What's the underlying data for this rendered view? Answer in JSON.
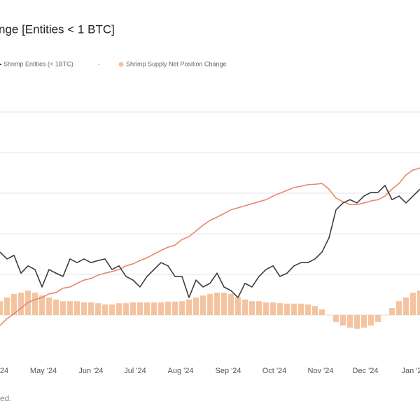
{
  "chart_data": {
    "type": "combo",
    "title": "nge [Entities < 1 BTC]",
    "legend_separator": "-",
    "footer": "ed.",
    "xlim": [
      0,
      60
    ],
    "xticks": [
      {
        "value": 0.5,
        "label": "'24"
      },
      {
        "value": 6.2,
        "label": "May '24"
      },
      {
        "value": 13,
        "label": "Jun '24"
      },
      {
        "value": 19.3,
        "label": "Jul '24"
      },
      {
        "value": 25.8,
        "label": "Aug '24"
      },
      {
        "value": 32.6,
        "label": "Sep '24"
      },
      {
        "value": 39.2,
        "label": "Oct '24"
      },
      {
        "value": 45.8,
        "label": "Nov '24"
      },
      {
        "value": 52.2,
        "label": "Dec '24"
      },
      {
        "value": 58.8,
        "label": "Jan '2"
      }
    ],
    "ylim": [
      -1,
      6
    ],
    "yticks": [
      0,
      1,
      2,
      3,
      4,
      5
    ],
    "grid": true,
    "series": [
      {
        "name": "Shrimp Supply Net Position Change",
        "type": "bar",
        "color": "#f4c3a0",
        "values": [
          0.34,
          0.43,
          0.52,
          0.55,
          0.6,
          0.55,
          0.48,
          0.43,
          0.38,
          0.34,
          0.34,
          0.34,
          0.31,
          0.31,
          0.29,
          0.26,
          0.26,
          0.29,
          0.29,
          0.31,
          0.31,
          0.31,
          0.31,
          0.31,
          0.33,
          0.33,
          0.34,
          0.38,
          0.43,
          0.48,
          0.52,
          0.55,
          0.55,
          0.52,
          0.43,
          0.38,
          0.34,
          0.34,
          0.31,
          0.31,
          0.29,
          0.28,
          0.28,
          0.28,
          0.26,
          0.22,
          0.14,
          0,
          -0.17,
          -0.26,
          -0.31,
          -0.34,
          -0.31,
          -0.26,
          -0.17,
          0,
          0.17,
          0.34,
          0.43,
          0.55,
          0.6
        ]
      },
      {
        "type": "line",
        "color": "#e8876a",
        "values": [
          -0.26,
          -0.09,
          0.03,
          0.17,
          0.31,
          0.38,
          0.43,
          0.52,
          0.55,
          0.66,
          0.69,
          0.78,
          0.86,
          0.9,
          0.98,
          1.03,
          1.07,
          1.12,
          1.21,
          1.26,
          1.34,
          1.41,
          1.5,
          1.59,
          1.67,
          1.72,
          1.86,
          1.93,
          2.07,
          2.21,
          2.33,
          2.41,
          2.5,
          2.59,
          2.64,
          2.69,
          2.74,
          2.79,
          2.84,
          2.93,
          3.0,
          3.07,
          3.14,
          3.17,
          3.21,
          3.22,
          3.24,
          3.1,
          2.88,
          2.79,
          2.72,
          2.72,
          2.76,
          2.81,
          2.84,
          2.93,
          3.1,
          3.24,
          3.45,
          3.57,
          3.62
        ]
      },
      {
        "name": "Shrimp Entities (< 1BTC)",
        "type": "line",
        "color": "#3d3d3d",
        "values": [
          1.55,
          1.38,
          1.47,
          1.03,
          1.21,
          1.12,
          0.69,
          1.12,
          1.03,
          0.95,
          1.38,
          1.29,
          1.38,
          1.29,
          1.34,
          1.38,
          1.12,
          1.21,
          0.95,
          0.86,
          0.69,
          0.95,
          1.12,
          1.29,
          1.21,
          0.95,
          0.95,
          0.43,
          0.86,
          0.69,
          0.78,
          1.03,
          0.69,
          0.6,
          0.43,
          0.78,
          0.69,
          0.95,
          1.12,
          1.21,
          0.95,
          1.03,
          1.21,
          1.29,
          1.29,
          1.38,
          1.55,
          1.9,
          2.59,
          2.76,
          2.84,
          2.76,
          2.93,
          3.02,
          3.02,
          3.19,
          2.84,
          2.93,
          2.76,
          2.93,
          3.1
        ]
      }
    ]
  }
}
